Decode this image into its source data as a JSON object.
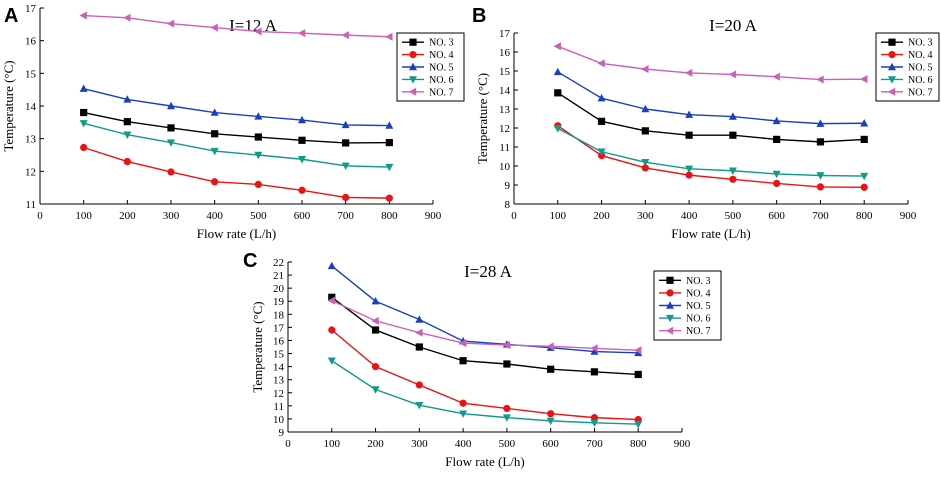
{
  "colors": {
    "NO. 3": "#000000",
    "NO. 4": "#ee1111",
    "NO. 5": "#1a3fbf",
    "NO. 6": "#0f9a8a",
    "NO. 7": "#cc5fb8"
  },
  "markers": {
    "NO. 3": "square",
    "NO. 4": "circle",
    "NO. 5": "triangle-up",
    "NO. 6": "triangle-down",
    "NO. 7": "triangle-left"
  },
  "chart_data": [
    {
      "panel": "A",
      "type": "line",
      "title": "I=12 A",
      "xlabel": "Flow rate (L/h)",
      "ylabel": "Temperature (°C)",
      "xlim": [
        0,
        900
      ],
      "xticks": [
        0,
        100,
        200,
        300,
        400,
        500,
        600,
        700,
        800,
        900
      ],
      "ylim": [
        11,
        17
      ],
      "yticks": [
        11,
        12,
        13,
        14,
        15,
        16,
        17
      ],
      "legend_position": "top-right",
      "x": [
        100,
        200,
        300,
        400,
        500,
        600,
        700,
        800
      ],
      "series": [
        {
          "name": "NO. 3",
          "values": [
            13.8,
            13.52,
            13.33,
            13.15,
            13.05,
            12.95,
            12.87,
            12.88
          ]
        },
        {
          "name": "NO. 4",
          "values": [
            12.73,
            12.3,
            11.98,
            11.68,
            11.6,
            11.42,
            11.2,
            11.18
          ]
        },
        {
          "name": "NO. 5",
          "values": [
            14.53,
            14.2,
            14.0,
            13.8,
            13.68,
            13.57,
            13.42,
            13.4
          ]
        },
        {
          "name": "NO. 6",
          "values": [
            13.47,
            13.12,
            12.88,
            12.62,
            12.5,
            12.37,
            12.17,
            12.13
          ]
        },
        {
          "name": "NO. 7",
          "values": [
            16.77,
            16.7,
            16.52,
            16.4,
            16.28,
            16.23,
            16.17,
            16.12
          ]
        }
      ]
    },
    {
      "panel": "B",
      "type": "line",
      "title": "I=20 A",
      "xlabel": "Flow rate (L/h)",
      "ylabel": "Temperature (°C)",
      "xlim": [
        0,
        900
      ],
      "xticks": [
        0,
        100,
        200,
        300,
        400,
        500,
        600,
        700,
        800,
        900
      ],
      "ylim": [
        8,
        17
      ],
      "yticks": [
        8,
        9,
        10,
        11,
        12,
        13,
        14,
        15,
        16,
        17
      ],
      "legend_position": "top-right",
      "x": [
        100,
        200,
        300,
        400,
        500,
        600,
        700,
        800
      ],
      "series": [
        {
          "name": "NO. 3",
          "values": [
            13.85,
            12.35,
            11.85,
            11.62,
            11.62,
            11.4,
            11.27,
            11.4
          ]
        },
        {
          "name": "NO. 4",
          "values": [
            12.12,
            10.55,
            9.9,
            9.52,
            9.3,
            9.08,
            8.9,
            8.88
          ]
        },
        {
          "name": "NO. 5",
          "values": [
            14.95,
            13.57,
            13.0,
            12.7,
            12.6,
            12.37,
            12.23,
            12.25
          ]
        },
        {
          "name": "NO. 6",
          "values": [
            11.98,
            10.75,
            10.2,
            9.85,
            9.75,
            9.58,
            9.5,
            9.47
          ]
        },
        {
          "name": "NO. 7",
          "values": [
            16.3,
            15.4,
            15.1,
            14.9,
            14.82,
            14.7,
            14.55,
            14.57
          ]
        }
      ]
    },
    {
      "panel": "C",
      "type": "line",
      "title": "I=28 A",
      "xlabel": "Flow rate (L/h)",
      "ylabel": "Temperature (°C)",
      "xlim": [
        0,
        900
      ],
      "xticks": [
        0,
        100,
        200,
        300,
        400,
        500,
        600,
        700,
        800,
        900
      ],
      "ylim": [
        9,
        22
      ],
      "yticks": [
        9,
        10,
        11,
        12,
        13,
        14,
        15,
        16,
        17,
        18,
        19,
        20,
        21,
        22
      ],
      "legend_position": "top-right",
      "x": [
        100,
        200,
        300,
        400,
        500,
        600,
        700,
        800
      ],
      "series": [
        {
          "name": "NO. 3",
          "values": [
            19.3,
            16.8,
            15.5,
            14.45,
            14.2,
            13.8,
            13.6,
            13.4
          ]
        },
        {
          "name": "NO. 4",
          "values": [
            16.8,
            14.0,
            12.6,
            11.2,
            10.8,
            10.4,
            10.1,
            9.95
          ]
        },
        {
          "name": "NO. 5",
          "values": [
            21.7,
            19.0,
            17.6,
            15.95,
            15.7,
            15.45,
            15.15,
            15.05
          ]
        },
        {
          "name": "NO. 6",
          "values": [
            14.45,
            12.25,
            11.05,
            10.4,
            10.1,
            9.85,
            9.7,
            9.6
          ]
        },
        {
          "name": "NO. 7",
          "values": [
            19.05,
            17.5,
            16.6,
            15.8,
            15.65,
            15.55,
            15.4,
            15.25
          ]
        }
      ]
    }
  ]
}
